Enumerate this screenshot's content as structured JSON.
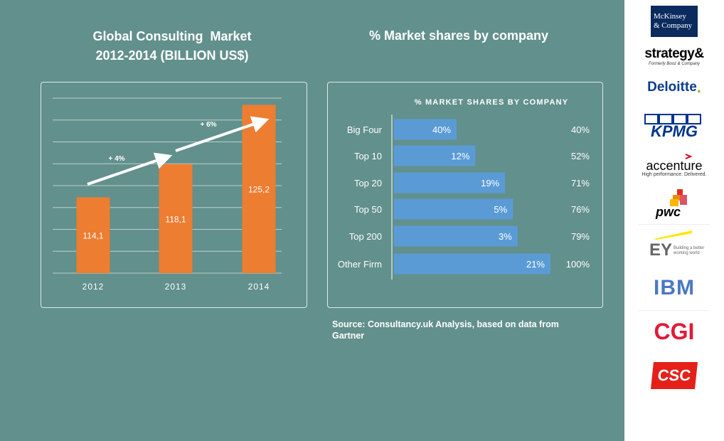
{
  "left_chart": {
    "title_line1": "Global Consulting  Market",
    "title_line2": "2012-2014 (BILLION US$)"
  },
  "right_chart": {
    "title": "% Market shares by company"
  },
  "source": "Source: Consultancy.uk  Analysis,  based on data from Gartner",
  "chart_data": [
    {
      "type": "bar",
      "categories": [
        "2012",
        "2013",
        "2014"
      ],
      "values": [
        114.1,
        118.1,
        125.2
      ],
      "value_labels": [
        "114,1",
        "118,1",
        "125,2"
      ],
      "title": "",
      "xlabel": "",
      "ylabel": "",
      "ylim": [
        105,
        126
      ],
      "grid": true,
      "color": "#ed7d31",
      "annotations": [
        {
          "text": "+ 4%",
          "from": "2012",
          "to": "2013"
        },
        {
          "text": "+ 6%",
          "from": "2013",
          "to": "2014"
        }
      ]
    },
    {
      "type": "bar",
      "orientation": "horizontal",
      "title": "% MARKET SHARES BY COMPANY",
      "categories": [
        "Big Four",
        "Top 10",
        "Top 20",
        "Top 50",
        "Top 200",
        "Other Firm"
      ],
      "values": [
        40,
        12,
        19,
        5,
        3,
        21
      ],
      "value_labels": [
        "40%",
        "12%",
        "19%",
        "5%",
        "3%",
        "21%"
      ],
      "cumulative": [
        40,
        52,
        71,
        76,
        79,
        100
      ],
      "cumulative_labels": [
        "40%",
        "52%",
        "71%",
        "76%",
        "79%",
        "100%"
      ],
      "xlim": [
        0,
        100
      ],
      "grid": false,
      "color": "#5b9bd5"
    }
  ],
  "logos": {
    "mckinsey_line1": "McKinsey",
    "mckinsey_line2": "& Company",
    "strategy": "strategy&",
    "strategy_sub": "Formerly Booz & Company",
    "deloitte": "Deloitte",
    "deloitte_dot": ".",
    "kpmg": "KPMG",
    "accenture": "accenture",
    "accenture_sub": "High performance. Delivered.",
    "pwc": "pwc",
    "ey": "EY",
    "ey_sub_line1": "Building a better",
    "ey_sub_line2": "working world",
    "ibm": "IBM",
    "cgi": "CGI",
    "csc": "CSC"
  },
  "colors": {
    "background": "#62908c",
    "bar_orange": "#ed7d31",
    "bar_blue": "#5b9bd5",
    "sidebar": "#ffffff"
  }
}
